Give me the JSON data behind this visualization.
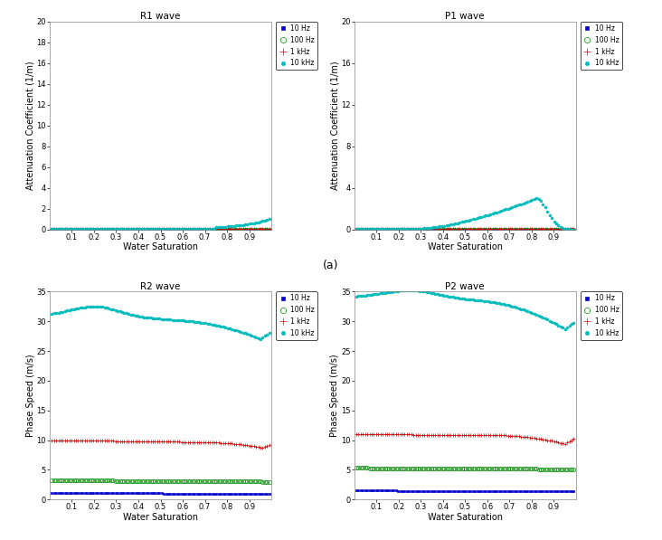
{
  "panels": [
    {
      "title": "R1 wave",
      "ylabel": "Attenuation Coefficient (1/m)",
      "xlabel": "Water Saturation",
      "ylim": [
        0,
        20
      ],
      "yticks": [
        0,
        2,
        4,
        6,
        8,
        10,
        12,
        14,
        16,
        18,
        20
      ],
      "wave": "R1"
    },
    {
      "title": "P1 wave",
      "ylabel": "Attenuation Coefficient (1/m)",
      "xlabel": "Water Saturation",
      "ylim": [
        0,
        20
      ],
      "yticks": [
        0,
        4,
        8,
        12,
        16,
        20
      ],
      "wave": "P1"
    },
    {
      "title": "R2 wave",
      "ylabel": "Phase Speed (m/s)",
      "xlabel": "Water Saturation",
      "ylim": [
        0,
        35
      ],
      "yticks": [
        0,
        5,
        10,
        15,
        20,
        25,
        30,
        35
      ],
      "wave": "R2"
    },
    {
      "title": "P2 wave",
      "ylabel": "Phase Speed (m/s)",
      "xlabel": "Water Saturation",
      "ylim": [
        0,
        35
      ],
      "yticks": [
        0,
        5,
        10,
        15,
        20,
        25,
        30,
        35
      ],
      "wave": "P2"
    }
  ],
  "frequencies": [
    "10 Hz",
    "100 Hz",
    "1 kHz",
    "10 kHz"
  ],
  "colors": [
    "#0000CC",
    "#008800",
    "#CC0000",
    "#00BBBB"
  ],
  "label_a": "(a)"
}
